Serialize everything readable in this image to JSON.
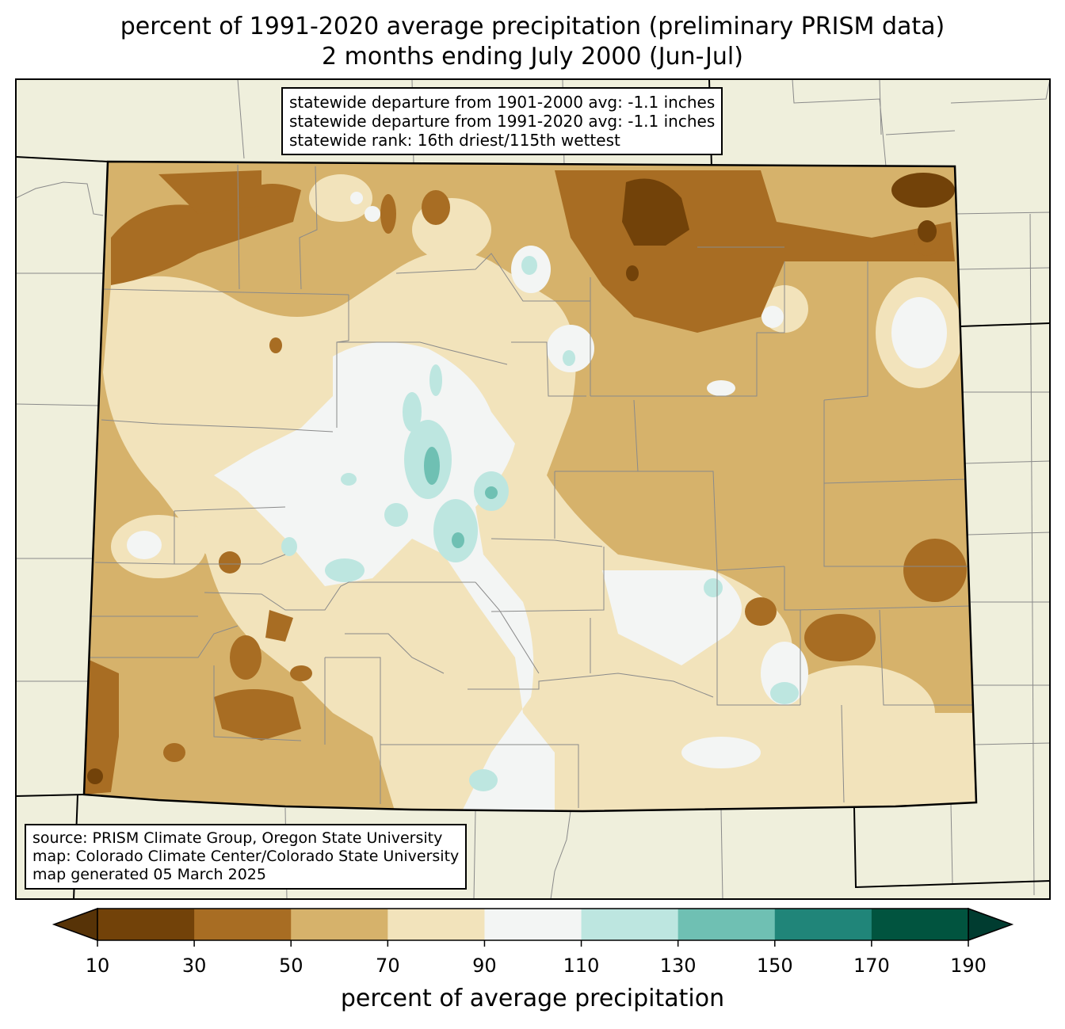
{
  "title": {
    "line1": "percent of 1991-2020 average precipitation (preliminary PRISM data)",
    "line2": "2 months ending July 2000 (Jun-Jul)"
  },
  "stats": {
    "line1": "statewide departure from 1901-2000 avg: -1.1 inches",
    "line2": "statewide departure from 1991-2020 avg: -1.1 inches",
    "line3": "statewide rank: 16th driest/115th wettest"
  },
  "credits": {
    "line1": "source: PRISM Climate Group, Oregon State University",
    "line2": "map: Colorado Climate Center/Colorado State University",
    "line3": "map generated 05 March 2025"
  },
  "colorbar": {
    "label": "percent of average precipitation",
    "ticks": [
      "10",
      "30",
      "50",
      "70",
      "90",
      "110",
      "130",
      "150",
      "170",
      "190"
    ],
    "colors": [
      "#724209",
      "#a86d23",
      "#d6b26b",
      "#f2e3bb",
      "#f3f5f4",
      "#bde6e0",
      "#6fc0b3",
      "#208579",
      "#01543f"
    ],
    "under_color": "#573307",
    "over_color": "#003c30"
  },
  "colors": {
    "background_land": "#efefdc",
    "state_border": "#000000",
    "county_border": "#8a8a8a"
  }
}
